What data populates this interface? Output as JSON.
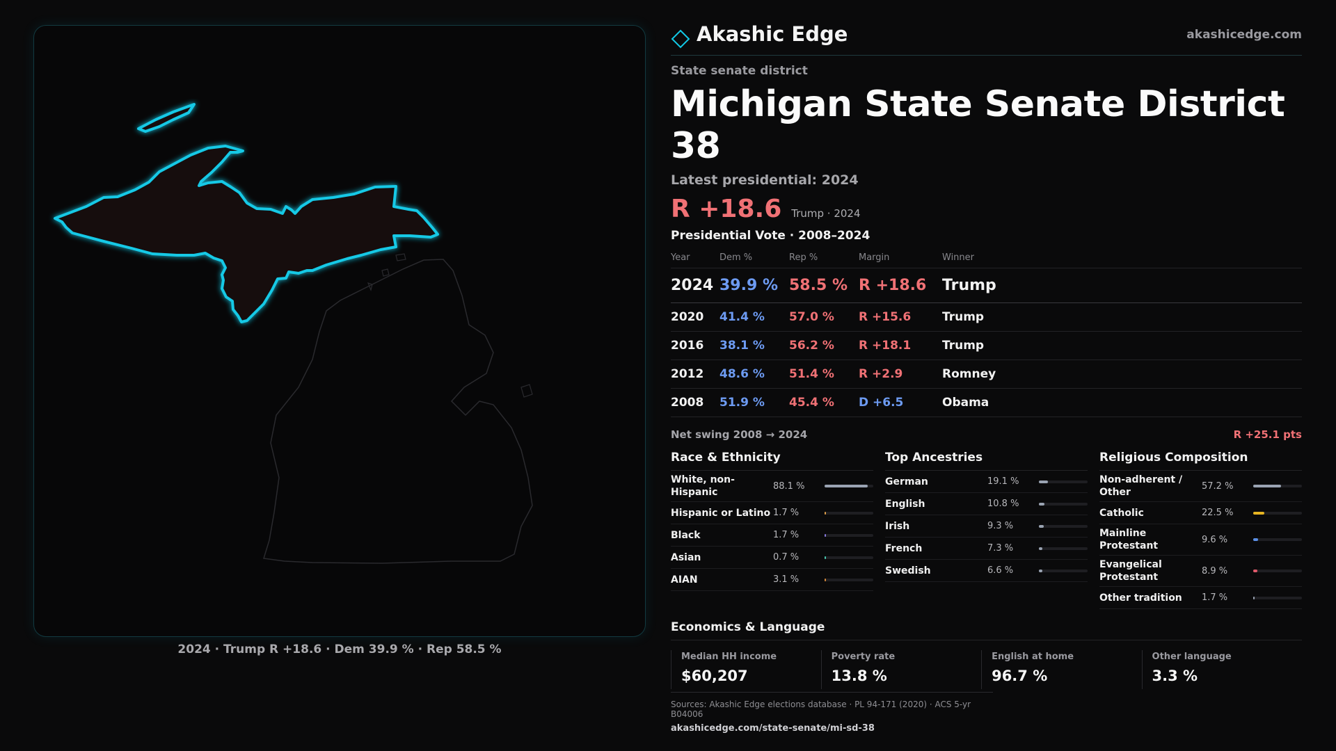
{
  "brand": {
    "name": "Akashic Edge",
    "url": "akashicedge.com",
    "accent": "#12c9e6"
  },
  "page": {
    "kicker": "State senate district",
    "title": "Michigan State Senate District 38",
    "latest": "Latest presidential: 2024",
    "headline_margin": "R +18.6",
    "headline_note": "Trump · 2024"
  },
  "map": {
    "caption": "2024 · Trump R +18.6 · Dem 39.9 % · Rep 58.5 %",
    "highlight_color": "#12c9e6"
  },
  "votes": {
    "title": "Presidential Vote · 2008–2024",
    "headers": [
      "Year",
      "Dem %",
      "Rep %",
      "Margin",
      "Winner"
    ],
    "rows": [
      {
        "year": "2024",
        "dem": "39.9 %",
        "rep": "58.5 %",
        "margin": "R +18.6",
        "party": "R",
        "winner": "Trump"
      },
      {
        "year": "2020",
        "dem": "41.4 %",
        "rep": "57.0 %",
        "margin": "R +15.6",
        "party": "R",
        "winner": "Trump"
      },
      {
        "year": "2016",
        "dem": "38.1 %",
        "rep": "56.2 %",
        "margin": "R +18.1",
        "party": "R",
        "winner": "Trump"
      },
      {
        "year": "2012",
        "dem": "48.6 %",
        "rep": "51.4 %",
        "margin": "R +2.9",
        "party": "R",
        "winner": "Romney"
      },
      {
        "year": "2008",
        "dem": "51.9 %",
        "rep": "45.4 %",
        "margin": "D +6.5",
        "party": "D",
        "winner": "Obama"
      }
    ],
    "swing_label": "Net swing 2008 → 2024",
    "swing_value": "R +25.1 pts"
  },
  "race": {
    "title": "Race & Ethnicity",
    "items": [
      {
        "label": "White, non-Hispanic",
        "value": "88.1 %",
        "pct": 88.1,
        "color": "#9aa3b2"
      },
      {
        "label": "Hispanic or Latino",
        "value": "1.7 %",
        "pct": 1.7,
        "color": "#e0a04a"
      },
      {
        "label": "Black",
        "value": "1.7 %",
        "pct": 1.7,
        "color": "#8a7be0"
      },
      {
        "label": "Asian",
        "value": "0.7 %",
        "pct": 0.7,
        "color": "#4ac9b0"
      },
      {
        "label": "AIAN",
        "value": "3.1 %",
        "pct": 3.1,
        "color": "#d98a3a"
      }
    ]
  },
  "ancestry": {
    "title": "Top Ancestries",
    "items": [
      {
        "label": "German",
        "value": "19.1 %",
        "pct": 19.1,
        "color": "#9aa3b2"
      },
      {
        "label": "English",
        "value": "10.8 %",
        "pct": 10.8,
        "color": "#9aa3b2"
      },
      {
        "label": "Irish",
        "value": "9.3 %",
        "pct": 9.3,
        "color": "#9aa3b2"
      },
      {
        "label": "French",
        "value": "7.3 %",
        "pct": 7.3,
        "color": "#9aa3b2"
      },
      {
        "label": "Swedish",
        "value": "6.6 %",
        "pct": 6.6,
        "color": "#9aa3b2"
      }
    ]
  },
  "religion": {
    "title": "Religious Composition",
    "items": [
      {
        "label": "Non-adherent / Other",
        "value": "57.2 %",
        "pct": 57.2,
        "color": "#9aa3b2"
      },
      {
        "label": "Catholic",
        "value": "22.5 %",
        "pct": 22.5,
        "color": "#e6b422"
      },
      {
        "label": "Mainline Protestant",
        "value": "9.6 %",
        "pct": 9.6,
        "color": "#5b8fe6"
      },
      {
        "label": "Evangelical Protestant",
        "value": "8.9 %",
        "pct": 8.9,
        "color": "#e05a6a"
      },
      {
        "label": "Other tradition",
        "value": "1.7 %",
        "pct": 1.7,
        "color": "#9aa3b2"
      }
    ]
  },
  "economics": {
    "title": "Economics & Language",
    "items": [
      {
        "label": "Median HH income",
        "value": "$60,207"
      },
      {
        "label": "Poverty rate",
        "value": "13.8 %"
      },
      {
        "label": "English at home",
        "value": "96.7 %"
      },
      {
        "label": "Other language",
        "value": "3.3 %"
      }
    ]
  },
  "sources": {
    "line": "Sources: Akashic Edge elections database · PL 94-171 (2020) · ACS 5-yr B04006",
    "url": "akashicedge.com/state-senate/mi-sd-38"
  }
}
